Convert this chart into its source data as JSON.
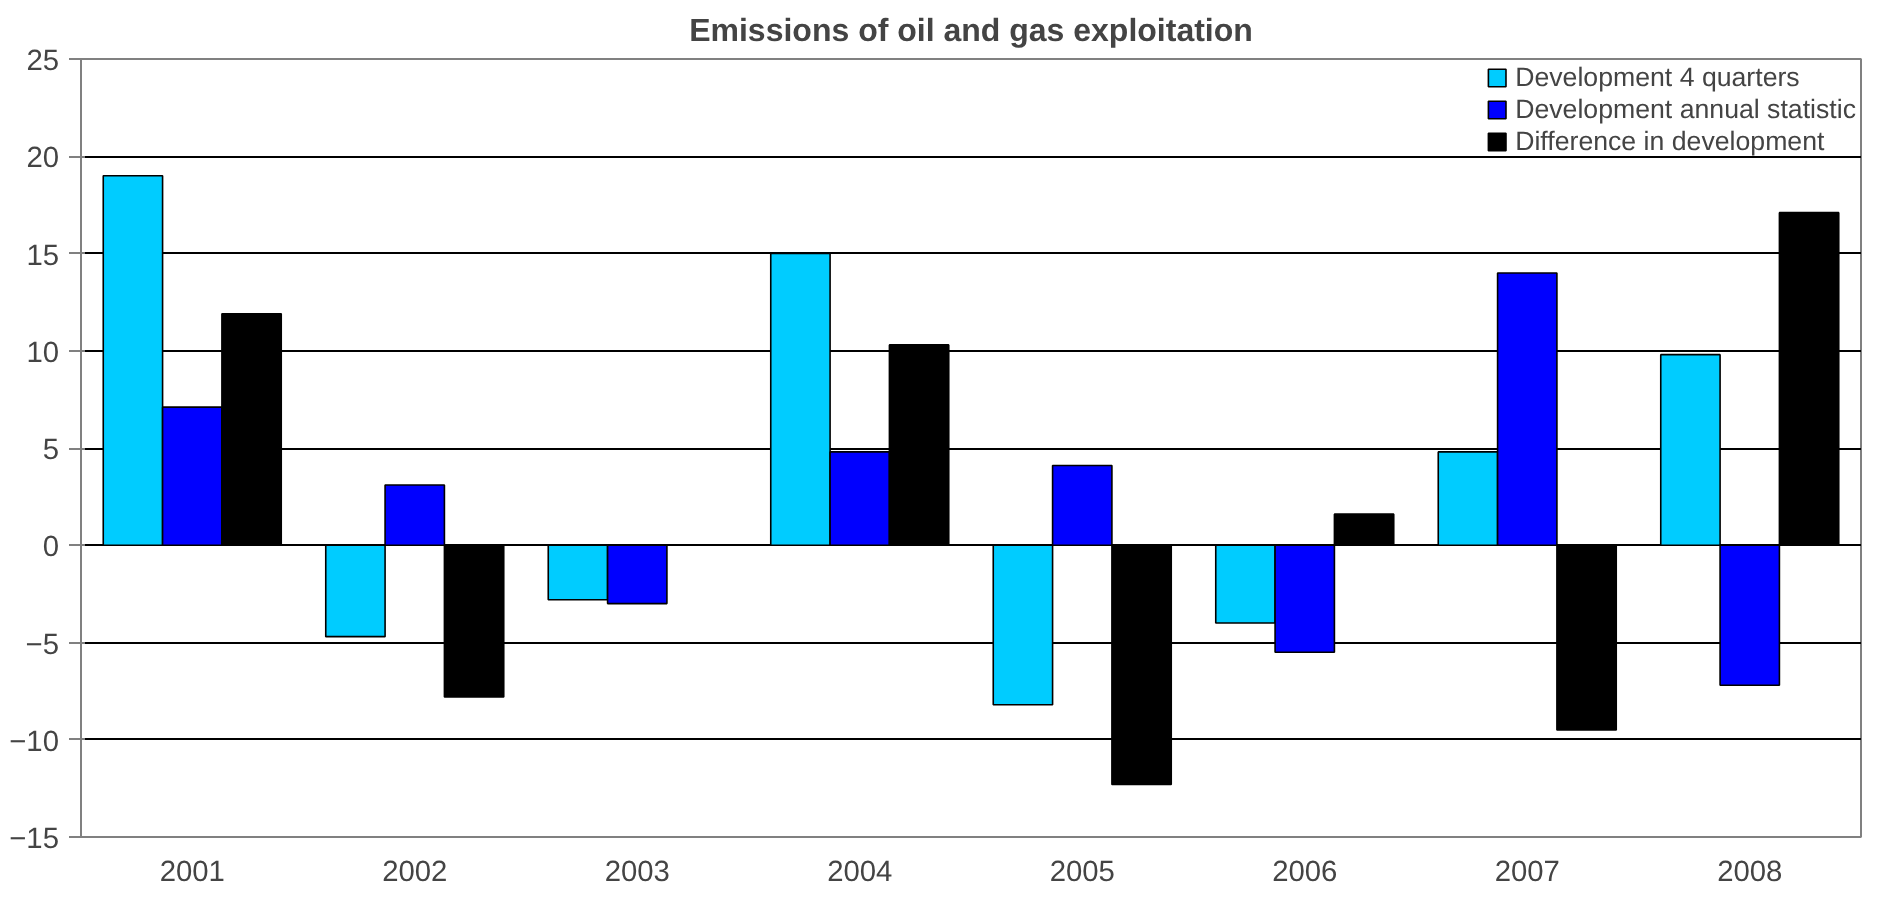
{
  "chart_data": {
    "type": "bar",
    "title": "Emissions of oil and gas exploitation",
    "categories": [
      "2001",
      "2002",
      "2003",
      "2004",
      "2005",
      "2006",
      "2007",
      "2008"
    ],
    "series": [
      {
        "name": "Development 4 quarters",
        "color": "#00ccff",
        "values": [
          19,
          -4.7,
          -2.8,
          15,
          -8.2,
          -4.0,
          4.8,
          9.8
        ]
      },
      {
        "name": "Development annual statistic",
        "color": "#0000ff",
        "values": [
          7.1,
          3.1,
          -3.0,
          4.8,
          4.1,
          -5.5,
          14.0,
          -7.2
        ]
      },
      {
        "name": "Difference in development",
        "color": "#000000",
        "values": [
          11.9,
          -7.8,
          null,
          10.3,
          -12.3,
          1.6,
          -9.5,
          17.1
        ]
      }
    ],
    "ylim": [
      -15,
      25
    ],
    "yticks": [
      -15,
      -10,
      -5,
      0,
      5,
      10,
      15,
      20,
      25
    ],
    "grid": "y",
    "legend": "top right"
  }
}
